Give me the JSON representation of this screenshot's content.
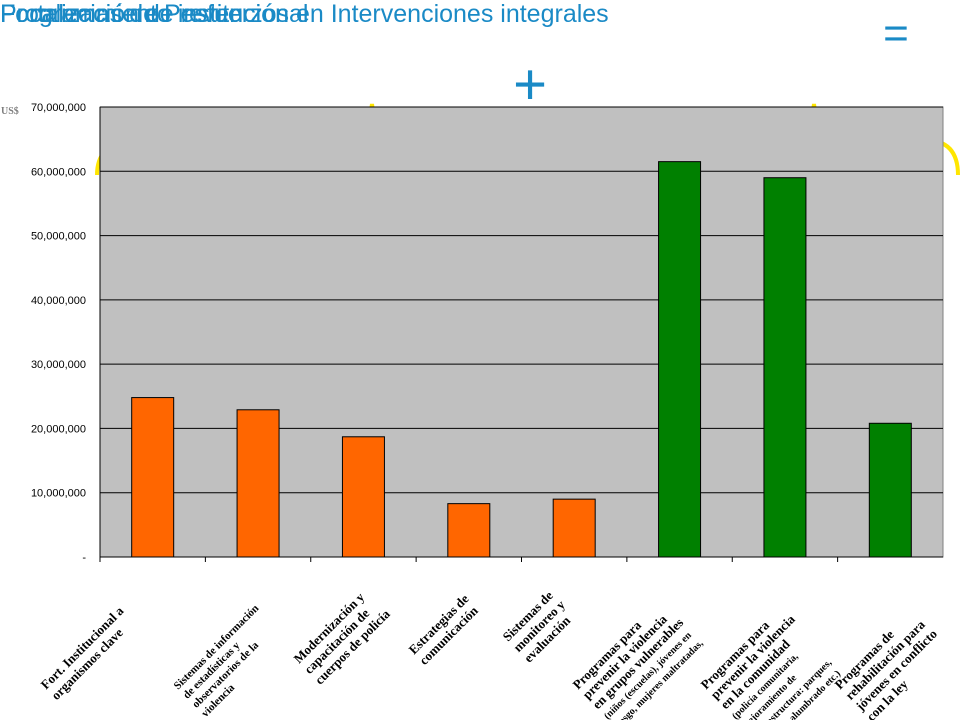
{
  "header": {
    "title": "Focalización de esfuerzos en Intervenciones integrales",
    "equals_symbol": "=",
    "plus_symbol": "+",
    "left_group": "Fortalecimiento institucional",
    "right_group": "Programas de Prevención"
  },
  "colors": {
    "title": "#1a8ac6",
    "bracket": "#ffe600",
    "plot_bg": "#c0c0c0",
    "orange": "#ff6600",
    "green": "#008000"
  },
  "chart_data": {
    "type": "bar",
    "y_unit_label": "US$",
    "ylim": [
      0,
      70000000
    ],
    "y_ticks": [
      "-",
      "10,000,000",
      "20,000,000",
      "30,000,000",
      "40,000,000",
      "50,000,000",
      "60,000,000",
      "70,000,000"
    ],
    "grid": true,
    "categories": [
      [
        "Fort. Institucional a",
        "organismos clave"
      ],
      [
        "Sistemas de información",
        "de estadísticas y",
        "observatorios de la",
        "violencia"
      ],
      [
        "Modernización y",
        "capacitación de",
        "cuerpos de policía"
      ],
      [
        "Estrategias de",
        "comunicación"
      ],
      [
        "Sistemas de",
        "monitoreo y",
        "evaluación"
      ],
      [
        "Programas para",
        "prevenir la violencia",
        "en grupos vulnerables",
        "(niños (escuelas), jóvenes en",
        "riesgo, mujeres maltratadas,",
        "etc.)"
      ],
      [
        "Programas para",
        "prevenir la violencia",
        "en la comunidad",
        "(policía comunitaria,",
        "mejoramiento de",
        "infraestructura: parques,",
        "canchas, alumbrado etc.)"
      ],
      [
        "Programas de",
        "rehabilitación  para",
        "jóvenes en conflicto",
        "con la ley"
      ]
    ],
    "values": [
      24800000,
      22900000,
      18700000,
      8300000,
      9000000,
      61500000,
      59000000,
      20800000
    ],
    "bar_groups": [
      "orange",
      "orange",
      "orange",
      "orange",
      "orange",
      "green",
      "green",
      "green"
    ]
  }
}
